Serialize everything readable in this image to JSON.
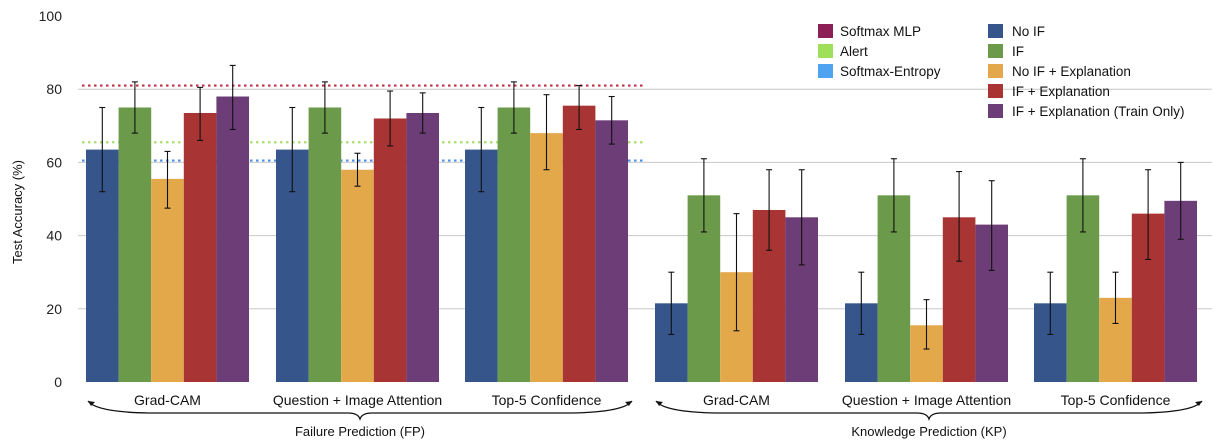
{
  "chart_data": {
    "type": "bar",
    "ylabel": "Test Accuracy (%)",
    "xlabel": "",
    "ylim": [
      0,
      100
    ],
    "yticks": [
      0,
      20,
      40,
      60,
      80,
      100
    ],
    "grid": true,
    "groups": [
      {
        "label": "Failure Prediction (FP)",
        "categories": [
          "Grad-CAM",
          "Question + Image Attention",
          "Top-5 Confidence"
        ],
        "series": [
          {
            "name": "No IF",
            "values": [
              63.5,
              63.5,
              63.5
            ],
            "errors": [
              [
                52,
                75
              ],
              [
                52,
                75
              ],
              [
                52,
                75
              ]
            ]
          },
          {
            "name": "IF",
            "values": [
              75,
              75,
              75
            ],
            "errors": [
              [
                68,
                82
              ],
              [
                68,
                82
              ],
              [
                68,
                82
              ]
            ]
          },
          {
            "name": "No IF + Explanation",
            "values": [
              55.5,
              58,
              68
            ],
            "errors": [
              [
                47.5,
                63
              ],
              [
                53.5,
                62.5
              ],
              [
                58,
                78.5
              ]
            ]
          },
          {
            "name": "IF + Explanation",
            "values": [
              73.5,
              72,
              75.5
            ],
            "errors": [
              [
                66,
                80.5
              ],
              [
                64.5,
                79.5
              ],
              [
                69,
                81
              ]
            ]
          },
          {
            "name": "IF + Explanation (Train Only)",
            "values": [
              78,
              73.5,
              71.5
            ],
            "errors": [
              [
                69,
                86.5
              ],
              [
                68,
                79
              ],
              [
                65,
                78
              ]
            ]
          }
        ],
        "reference_lines": [
          {
            "name": "Softmax MLP",
            "value": 81
          },
          {
            "name": "Alert",
            "value": 65.5
          },
          {
            "name": "Softmax-Entropy",
            "value": 60.5
          }
        ]
      },
      {
        "label": "Knowledge Prediction (KP)",
        "categories": [
          "Grad-CAM",
          "Question + Image Attention",
          "Top-5 Confidence"
        ],
        "series": [
          {
            "name": "No IF",
            "values": [
              21.5,
              21.5,
              21.5
            ],
            "errors": [
              [
                13,
                30
              ],
              [
                13,
                30
              ],
              [
                13,
                30
              ]
            ]
          },
          {
            "name": "IF",
            "values": [
              51,
              51,
              51
            ],
            "errors": [
              [
                41,
                61
              ],
              [
                41,
                61
              ],
              [
                41,
                61
              ]
            ]
          },
          {
            "name": "No IF + Explanation",
            "values": [
              30,
              15.5,
              23
            ],
            "errors": [
              [
                14,
                46
              ],
              [
                9,
                22.5
              ],
              [
                16,
                30
              ]
            ]
          },
          {
            "name": "IF + Explanation",
            "values": [
              47,
              45,
              46
            ],
            "errors": [
              [
                36,
                58
              ],
              [
                33,
                57.5
              ],
              [
                33.5,
                58
              ]
            ]
          },
          {
            "name": "IF + Explanation (Train Only)",
            "values": [
              45,
              43,
              49.5
            ],
            "errors": [
              [
                32,
                58
              ],
              [
                30.5,
                55
              ],
              [
                39,
                60
              ]
            ]
          }
        ]
      }
    ],
    "legend": {
      "reference": [
        {
          "name": "Softmax MLP",
          "color": "#8b1f56"
        },
        {
          "name": "Alert",
          "color": "#9ee05a"
        },
        {
          "name": "Softmax-Entropy",
          "color": "#4fa3f0"
        }
      ],
      "series": [
        {
          "name": "No IF",
          "color": "#36558a"
        },
        {
          "name": "IF",
          "color": "#6a9a4a"
        },
        {
          "name": "No IF + Explanation",
          "color": "#e3a84a"
        },
        {
          "name": "IF + Explanation",
          "color": "#a83434"
        },
        {
          "name": "IF + Explanation (Train Only)",
          "color": "#6d3d78"
        }
      ]
    },
    "reference_line_colors": {
      "Softmax MLP": "#c0304a",
      "Alert": "#a8e070",
      "Softmax-Entropy": "#4a8ee8"
    }
  }
}
